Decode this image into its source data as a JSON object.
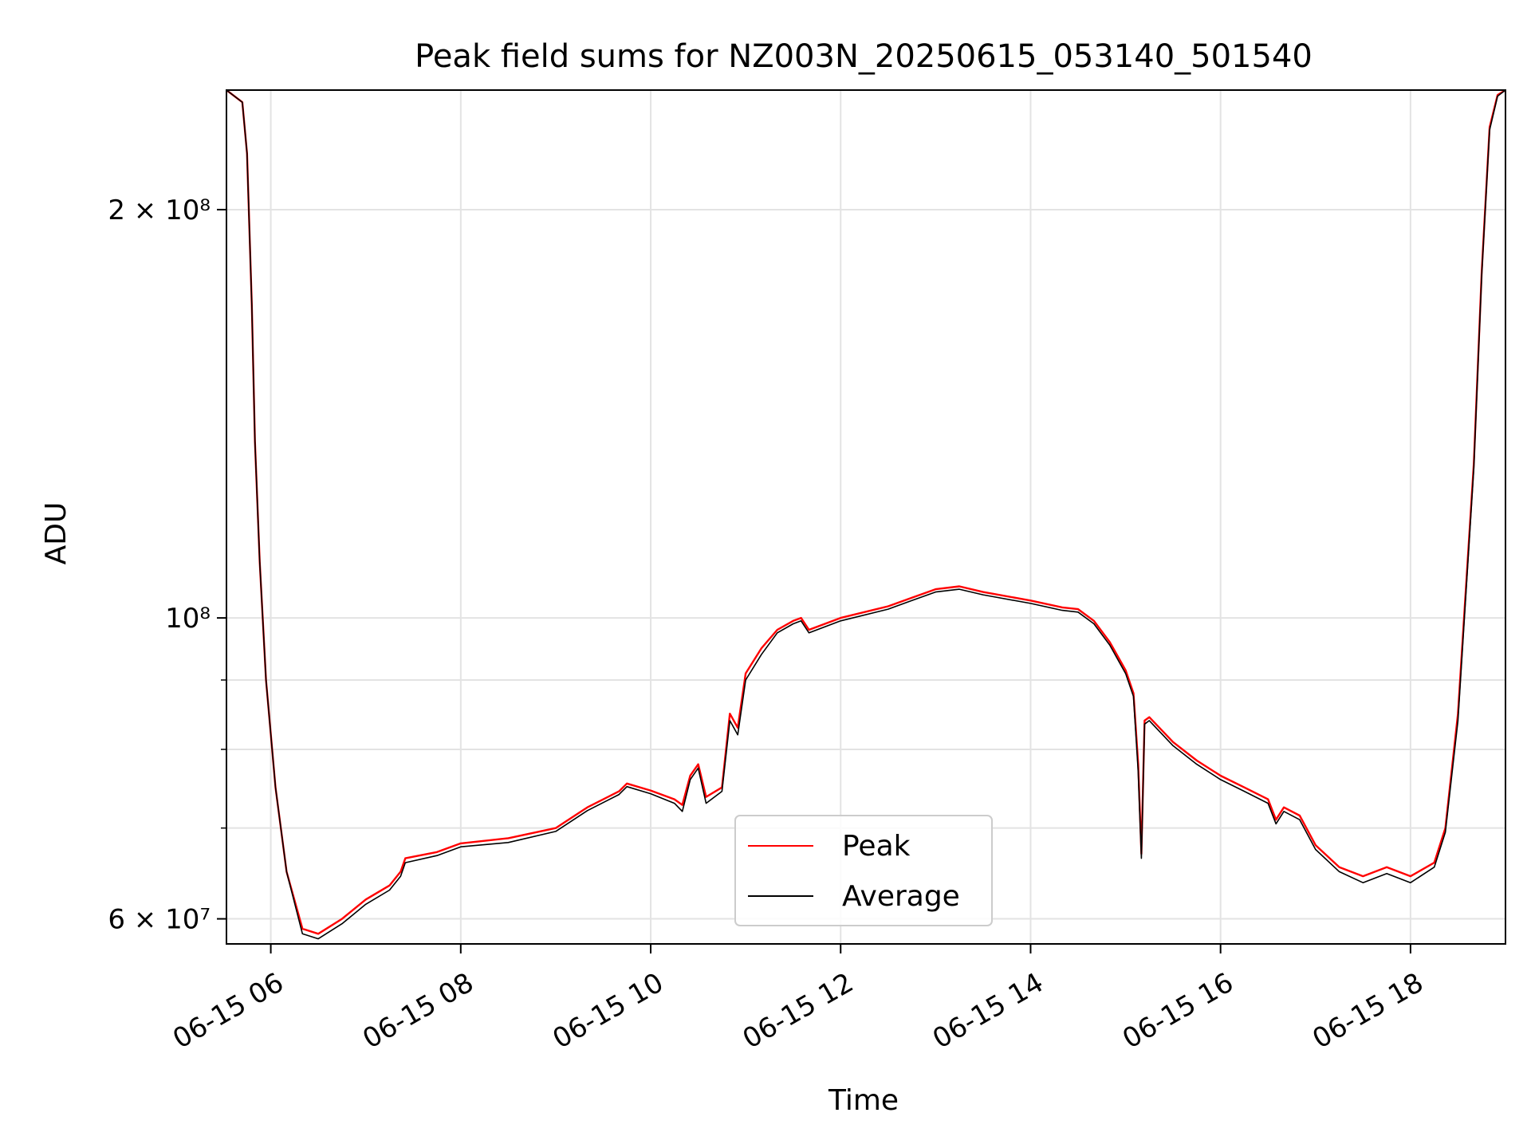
{
  "chart_data": {
    "type": "line",
    "title": "Peak field sums for NZ003N_20250615_053140_501540",
    "xlabel": "Time",
    "ylabel": "ADU",
    "y_scale": "log",
    "ylim": [
      57500000,
      245000000
    ],
    "xlim": [
      "2025-06-15 05:32",
      "2025-06-15 19:00"
    ],
    "x_ticks": [
      {
        "value": "2025-06-15 06:00",
        "label": "06-15 06"
      },
      {
        "value": "2025-06-15 08:00",
        "label": "06-15 08"
      },
      {
        "value": "2025-06-15 10:00",
        "label": "06-15 10"
      },
      {
        "value": "2025-06-15 12:00",
        "label": "06-15 12"
      },
      {
        "value": "2025-06-15 14:00",
        "label": "06-15 14"
      },
      {
        "value": "2025-06-15 16:00",
        "label": "06-15 16"
      },
      {
        "value": "2025-06-15 18:00",
        "label": "06-15 18"
      }
    ],
    "y_major_ticks": [
      {
        "value": 60000000,
        "label": "6 × 10⁷"
      },
      {
        "value": 100000000,
        "label": "10⁸"
      },
      {
        "value": 200000000,
        "label": "2 × 10⁸"
      }
    ],
    "y_minor_gridlines": [
      70000000,
      80000000,
      90000000
    ],
    "grid": true,
    "legend": {
      "position": "lower-center",
      "entries": [
        "Peak",
        "Average"
      ]
    },
    "series": [
      {
        "name": "Peak",
        "color": "#ff0000",
        "points": [
          [
            "2025-06-15 05:32",
            245000000
          ],
          [
            "2025-06-15 05:42",
            240000000
          ],
          [
            "2025-06-15 05:45",
            220000000
          ],
          [
            "2025-06-15 05:48",
            170000000
          ],
          [
            "2025-06-15 05:50",
            135000000
          ],
          [
            "2025-06-15 05:53",
            110000000
          ],
          [
            "2025-06-15 05:57",
            90000000
          ],
          [
            "2025-06-15 06:03",
            75000000
          ],
          [
            "2025-06-15 06:10",
            65000000
          ],
          [
            "2025-06-15 06:20",
            59000000
          ],
          [
            "2025-06-15 06:30",
            58500000
          ],
          [
            "2025-06-15 06:45",
            60000000
          ],
          [
            "2025-06-15 07:00",
            62000000
          ],
          [
            "2025-06-15 07:15",
            63500000
          ],
          [
            "2025-06-15 07:22",
            65000000
          ],
          [
            "2025-06-15 07:25",
            66500000
          ],
          [
            "2025-06-15 07:45",
            67200000
          ],
          [
            "2025-06-15 08:00",
            68200000
          ],
          [
            "2025-06-15 08:30",
            68800000
          ],
          [
            "2025-06-15 09:00",
            70000000
          ],
          [
            "2025-06-15 09:20",
            72500000
          ],
          [
            "2025-06-15 09:40",
            74500000
          ],
          [
            "2025-06-15 09:45",
            75500000
          ],
          [
            "2025-06-15 10:00",
            74600000
          ],
          [
            "2025-06-15 10:15",
            73500000
          ],
          [
            "2025-06-15 10:20",
            72800000
          ],
          [
            "2025-06-15 10:25",
            76500000
          ],
          [
            "2025-06-15 10:30",
            78000000
          ],
          [
            "2025-06-15 10:35",
            73800000
          ],
          [
            "2025-06-15 10:45",
            75000000
          ],
          [
            "2025-06-15 10:50",
            85000000
          ],
          [
            "2025-06-15 10:55",
            83000000
          ],
          [
            "2025-06-15 11:00",
            91000000
          ],
          [
            "2025-06-15 11:10",
            95000000
          ],
          [
            "2025-06-15 11:20",
            98000000
          ],
          [
            "2025-06-15 11:30",
            99500000
          ],
          [
            "2025-06-15 11:35",
            100000000
          ],
          [
            "2025-06-15 11:40",
            98000000
          ],
          [
            "2025-06-15 12:00",
            100000000
          ],
          [
            "2025-06-15 12:30",
            102000000
          ],
          [
            "2025-06-15 12:45",
            103500000
          ],
          [
            "2025-06-15 13:00",
            105000000
          ],
          [
            "2025-06-15 13:15",
            105500000
          ],
          [
            "2025-06-15 13:30",
            104500000
          ],
          [
            "2025-06-15 14:00",
            103000000
          ],
          [
            "2025-06-15 14:20",
            101800000
          ],
          [
            "2025-06-15 14:30",
            101500000
          ],
          [
            "2025-06-15 14:40",
            99500000
          ],
          [
            "2025-06-15 14:50",
            96000000
          ],
          [
            "2025-06-15 15:00",
            91500000
          ],
          [
            "2025-06-15 15:05",
            88000000
          ],
          [
            "2025-06-15 15:08",
            78000000
          ],
          [
            "2025-06-15 15:10",
            67000000
          ],
          [
            "2025-06-15 15:12",
            84000000
          ],
          [
            "2025-06-15 15:15",
            84500000
          ],
          [
            "2025-06-15 15:30",
            81000000
          ],
          [
            "2025-06-15 15:45",
            78500000
          ],
          [
            "2025-06-15 16:00",
            76500000
          ],
          [
            "2025-06-15 16:15",
            75000000
          ],
          [
            "2025-06-15 16:30",
            73500000
          ],
          [
            "2025-06-15 16:35",
            71000000
          ],
          [
            "2025-06-15 16:40",
            72500000
          ],
          [
            "2025-06-15 16:50",
            71500000
          ],
          [
            "2025-06-15 17:00",
            68000000
          ],
          [
            "2025-06-15 17:15",
            65500000
          ],
          [
            "2025-06-15 17:30",
            64500000
          ],
          [
            "2025-06-15 17:45",
            65500000
          ],
          [
            "2025-06-15 18:00",
            64500000
          ],
          [
            "2025-06-15 18:15",
            66000000
          ],
          [
            "2025-06-15 18:22",
            70000000
          ],
          [
            "2025-06-15 18:30",
            85000000
          ],
          [
            "2025-06-15 18:40",
            130000000
          ],
          [
            "2025-06-15 18:45",
            180000000
          ],
          [
            "2025-06-15 18:50",
            230000000
          ],
          [
            "2025-06-15 18:55",
            243000000
          ],
          [
            "2025-06-15 19:00",
            245000000
          ]
        ]
      },
      {
        "name": "Average",
        "color": "#000000",
        "points": [
          [
            "2025-06-15 05:32",
            245000000
          ],
          [
            "2025-06-15 05:42",
            240000000
          ],
          [
            "2025-06-15 05:45",
            220000000
          ],
          [
            "2025-06-15 05:48",
            170000000
          ],
          [
            "2025-06-15 05:50",
            135000000
          ],
          [
            "2025-06-15 05:53",
            110000000
          ],
          [
            "2025-06-15 05:57",
            90000000
          ],
          [
            "2025-06-15 06:03",
            75000000
          ],
          [
            "2025-06-15 06:10",
            65000000
          ],
          [
            "2025-06-15 06:20",
            58500000
          ],
          [
            "2025-06-15 06:30",
            58000000
          ],
          [
            "2025-06-15 06:45",
            59500000
          ],
          [
            "2025-06-15 07:00",
            61500000
          ],
          [
            "2025-06-15 07:15",
            63000000
          ],
          [
            "2025-06-15 07:22",
            64500000
          ],
          [
            "2025-06-15 07:25",
            66000000
          ],
          [
            "2025-06-15 07:45",
            66800000
          ],
          [
            "2025-06-15 08:00",
            67800000
          ],
          [
            "2025-06-15 08:30",
            68300000
          ],
          [
            "2025-06-15 09:00",
            69600000
          ],
          [
            "2025-06-15 09:20",
            72100000
          ],
          [
            "2025-06-15 09:40",
            74100000
          ],
          [
            "2025-06-15 09:45",
            75100000
          ],
          [
            "2025-06-15 10:00",
            74200000
          ],
          [
            "2025-06-15 10:15",
            73000000
          ],
          [
            "2025-06-15 10:20",
            72000000
          ],
          [
            "2025-06-15 10:25",
            76000000
          ],
          [
            "2025-06-15 10:30",
            77500000
          ],
          [
            "2025-06-15 10:35",
            73000000
          ],
          [
            "2025-06-15 10:45",
            74500000
          ],
          [
            "2025-06-15 10:50",
            84000000
          ],
          [
            "2025-06-15 10:55",
            82000000
          ],
          [
            "2025-06-15 11:00",
            90000000
          ],
          [
            "2025-06-15 11:10",
            94000000
          ],
          [
            "2025-06-15 11:20",
            97500000
          ],
          [
            "2025-06-15 11:30",
            99000000
          ],
          [
            "2025-06-15 11:35",
            99500000
          ],
          [
            "2025-06-15 11:40",
            97500000
          ],
          [
            "2025-06-15 12:00",
            99500000
          ],
          [
            "2025-06-15 12:30",
            101500000
          ],
          [
            "2025-06-15 12:45",
            103000000
          ],
          [
            "2025-06-15 13:00",
            104500000
          ],
          [
            "2025-06-15 13:15",
            105000000
          ],
          [
            "2025-06-15 13:30",
            104000000
          ],
          [
            "2025-06-15 14:00",
            102500000
          ],
          [
            "2025-06-15 14:20",
            101300000
          ],
          [
            "2025-06-15 14:30",
            101000000
          ],
          [
            "2025-06-15 14:40",
            99000000
          ],
          [
            "2025-06-15 14:50",
            95500000
          ],
          [
            "2025-06-15 15:00",
            91000000
          ],
          [
            "2025-06-15 15:05",
            87500000
          ],
          [
            "2025-06-15 15:08",
            77000000
          ],
          [
            "2025-06-15 15:10",
            66500000
          ],
          [
            "2025-06-15 15:12",
            83500000
          ],
          [
            "2025-06-15 15:15",
            84000000
          ],
          [
            "2025-06-15 15:30",
            80500000
          ],
          [
            "2025-06-15 15:45",
            78000000
          ],
          [
            "2025-06-15 16:00",
            76000000
          ],
          [
            "2025-06-15 16:15",
            74500000
          ],
          [
            "2025-06-15 16:30",
            73000000
          ],
          [
            "2025-06-15 16:35",
            70500000
          ],
          [
            "2025-06-15 16:40",
            72000000
          ],
          [
            "2025-06-15 16:50",
            71000000
          ],
          [
            "2025-06-15 17:00",
            67500000
          ],
          [
            "2025-06-15 17:15",
            65000000
          ],
          [
            "2025-06-15 17:30",
            63800000
          ],
          [
            "2025-06-15 17:45",
            64800000
          ],
          [
            "2025-06-15 18:00",
            63800000
          ],
          [
            "2025-06-15 18:15",
            65500000
          ],
          [
            "2025-06-15 18:22",
            69500000
          ],
          [
            "2025-06-15 18:30",
            84000000
          ],
          [
            "2025-06-15 18:40",
            129000000
          ],
          [
            "2025-06-15 18:45",
            179000000
          ],
          [
            "2025-06-15 18:50",
            229000000
          ],
          [
            "2025-06-15 18:55",
            242500000
          ],
          [
            "2025-06-15 19:00",
            245000000
          ]
        ]
      }
    ]
  }
}
